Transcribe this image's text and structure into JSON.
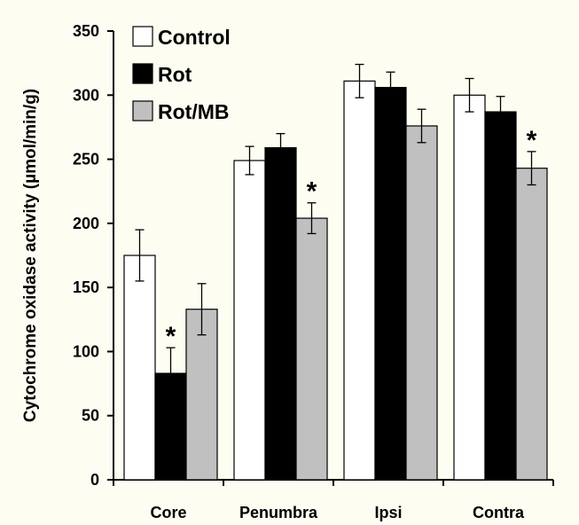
{
  "chart_data": {
    "type": "bar",
    "title": "",
    "xlabel": "",
    "ylabel": "Cytochrome oxidase activity (µmol/min/g)",
    "ylim": [
      0,
      350
    ],
    "yticks": [
      0,
      50,
      100,
      150,
      200,
      250,
      300,
      350
    ],
    "categories": [
      "Core",
      "Penumbra",
      "Ipsi",
      "Contra"
    ],
    "series": [
      {
        "name": "Control",
        "color": "#ffffff",
        "values": [
          175,
          249,
          311,
          300
        ],
        "errors": [
          20,
          11,
          13,
          13
        ],
        "significant": [
          false,
          false,
          false,
          false
        ]
      },
      {
        "name": "Rot",
        "color": "#000000",
        "values": [
          83,
          259,
          306,
          287
        ],
        "errors": [
          20,
          11,
          12,
          12
        ],
        "significant": [
          true,
          false,
          false,
          false
        ]
      },
      {
        "name": "Rot/MB",
        "color": "#c0c0c0",
        "values": [
          133,
          204,
          276,
          243
        ],
        "errors": [
          20,
          12,
          13,
          13
        ],
        "significant": [
          false,
          true,
          false,
          true
        ]
      }
    ],
    "significance_symbol": "*",
    "legend_position": "top-left",
    "grid": false
  }
}
